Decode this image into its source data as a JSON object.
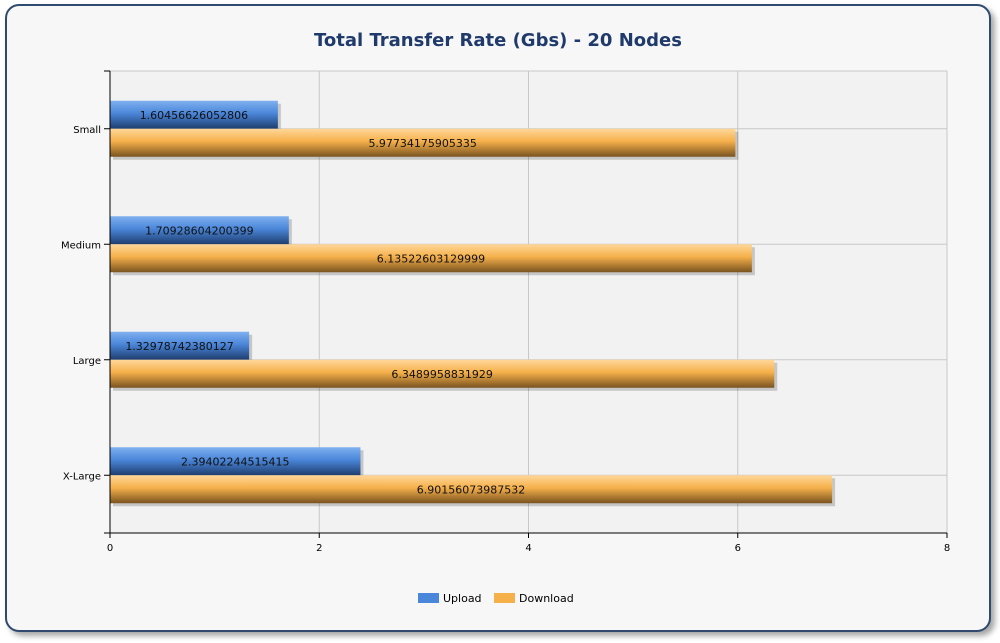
{
  "chart_data": {
    "type": "bar",
    "orientation": "horizontal",
    "title": "Total Transfer Rate (Gbs) - 20 Nodes",
    "categories": [
      "Small",
      "Medium",
      "Large",
      "X-Large"
    ],
    "series": [
      {
        "name": "Upload",
        "color": "#4a86d9",
        "values": [
          1.60456626052806,
          1.70928604200399,
          1.32978742380127,
          2.39402244515415
        ]
      },
      {
        "name": "Download",
        "color": "#f5b04a",
        "values": [
          5.97734175905335,
          6.13522603129999,
          6.3489958831929,
          6.90156073987532
        ]
      }
    ],
    "value_labels": {
      "Upload": [
        "1.60456626052806",
        "1.70928604200399",
        "1.32978742380127",
        "2.39402244515415"
      ],
      "Download": [
        "5.97734175905335",
        "6.13522603129999",
        "6.3489958831929",
        "6.90156073987532"
      ]
    },
    "xlim": [
      0,
      8
    ],
    "xticks": [
      "0",
      "2",
      "4",
      "6",
      "8"
    ],
    "xlabel": "",
    "ylabel": "",
    "grid": true,
    "legend_position": "bottom"
  }
}
